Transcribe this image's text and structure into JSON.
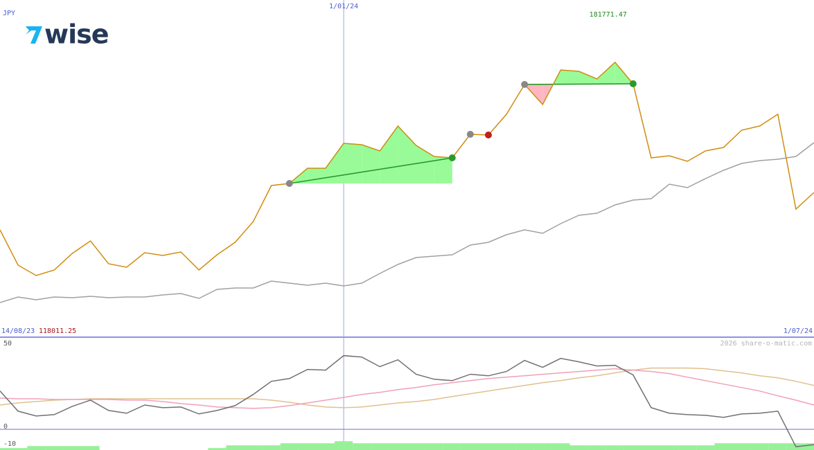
{
  "chart_data": [
    {
      "type": "line",
      "title": "JPY",
      "logo": "wise",
      "categories": [
        "14/08/23",
        null,
        null,
        null,
        null,
        null,
        null,
        null,
        null,
        null,
        null,
        null,
        null,
        null,
        null,
        null,
        null,
        null,
        null,
        "1/01/24",
        null,
        null,
        null,
        null,
        null,
        null,
        null,
        null,
        null,
        null,
        null,
        null,
        null,
        null,
        null,
        null,
        null,
        null,
        null,
        null,
        null,
        null,
        null,
        null,
        null,
        "1/07/24"
      ],
      "series": [
        {
          "color": "#d08c10",
          "values": [
            132200,
            124550,
            122300,
            123500,
            127100,
            129800,
            124850,
            124100,
            127250,
            126650,
            127400,
            123500,
            126800,
            129500,
            134000,
            141800,
            142250,
            145550,
            145550,
            150950,
            150650,
            149300,
            154700,
            150500,
            148100,
            147800,
            152900,
            152750,
            157250,
            163700,
            159350,
            166850,
            166550,
            164900,
            168500,
            163850,
            147800,
            148250,
            147050,
            149300,
            150050,
            153800,
            154700,
            157250,
            136700,
            140300
          ]
        },
        {
          "color": "#a0a0a0",
          "values": [
            116450,
            117650,
            117050,
            117650,
            117500,
            117800,
            117500,
            117650,
            117650,
            118100,
            118400,
            117350,
            119300,
            119600,
            119600,
            121100,
            120650,
            120200,
            120650,
            120050,
            120650,
            122750,
            124700,
            126200,
            126500,
            126800,
            128900,
            129500,
            131150,
            132200,
            131450,
            133550,
            135350,
            135800,
            137600,
            138650,
            138950,
            142100,
            141350,
            143300,
            145100,
            146600,
            147200,
            147500,
            148100,
            151100
          ]
        }
      ],
      "ylim": [
        109700,
        182000
      ],
      "high": 181771.47,
      "low": 118011.25,
      "trades": [
        {
          "entry": 16,
          "exit": 25
        },
        {
          "entry": 29,
          "exit": 35
        }
      ],
      "trade_colors": {
        "up": "#98fb98",
        "down": "#ffb6c1",
        "line": "#2a9a2a"
      },
      "markers": [
        {
          "index": 16,
          "color": "#888888"
        },
        {
          "index": 25,
          "color": "#2a9a2a"
        },
        {
          "index": 26,
          "color": "#888888"
        },
        {
          "index": 27,
          "color": "#c02020"
        },
        {
          "index": 29,
          "color": "#888888"
        },
        {
          "index": 35,
          "color": "#2a9a2a"
        }
      ]
    },
    {
      "type": "line",
      "credit": "2026 share-o-matic.com",
      "ylim": [
        -12,
        53
      ],
      "yticks": [
        50,
        0,
        -10
      ],
      "baseline": 0,
      "bars": {
        "color": "#98f098",
        "values": [
          -10.9,
          -10.9,
          -9.7,
          -9.7,
          -9.7,
          -9.7,
          null,
          null,
          null,
          null,
          null,
          null,
          -10.9,
          -9.3,
          -9.3,
          -9.3,
          -8.1,
          -8.1,
          -8.1,
          -6.9,
          -8.1,
          -8.1,
          -8.1,
          -8.1,
          -8.1,
          -8.1,
          -8.1,
          -8.1,
          -8.1,
          -8.1,
          -8.1,
          -8.1,
          -9.3,
          -9.3,
          -9.3,
          -9.3,
          -9.3,
          -9.3,
          -9.3,
          -9.3,
          -8.1,
          -8.1,
          -8.1,
          -8.1,
          -8.1,
          -8.1
        ]
      },
      "series": [
        {
          "color": "#707070",
          "values": [
            22.2,
            10.5,
            7.7,
            8.5,
            13.3,
            16.9,
            10.9,
            9.3,
            14.1,
            12.5,
            12.9,
            8.9,
            10.9,
            13.7,
            20.2,
            27.8,
            29.4,
            34.7,
            34.3,
            42.7,
            41.9,
            36.3,
            40.3,
            31.9,
            29.0,
            28.2,
            31.9,
            31.0,
            33.5,
            39.9,
            35.9,
            41.1,
            39.1,
            36.7,
            37.1,
            31.5,
            12.5,
            9.3,
            8.5,
            8.1,
            6.9,
            8.9,
            9.3,
            10.5,
            -10.1,
            -8.9
          ]
        },
        {
          "color": "#f0a0b8",
          "values": [
            18.1,
            17.7,
            17.7,
            17.3,
            17.3,
            17.3,
            17.3,
            16.9,
            16.9,
            16.1,
            14.9,
            14.1,
            12.9,
            12.5,
            12.1,
            12.5,
            13.7,
            15.3,
            16.9,
            18.5,
            20.2,
            21.4,
            23.0,
            24.2,
            25.8,
            27.0,
            28.2,
            29.4,
            30.2,
            31.0,
            31.9,
            32.7,
            33.5,
            34.3,
            35.1,
            34.3,
            33.5,
            32.3,
            30.2,
            28.2,
            26.2,
            24.2,
            22.2,
            19.4,
            16.9,
            14.1
          ]
        },
        {
          "color": "#e0c090",
          "values": [
            14.1,
            15.3,
            16.1,
            16.9,
            17.3,
            17.7,
            17.7,
            17.7,
            17.7,
            17.7,
            17.7,
            17.7,
            17.7,
            17.7,
            17.7,
            16.9,
            15.7,
            14.1,
            12.9,
            12.5,
            12.9,
            14.1,
            15.3,
            16.1,
            17.3,
            19.0,
            20.6,
            22.2,
            23.8,
            25.4,
            27.0,
            28.2,
            29.8,
            31.0,
            32.7,
            34.3,
            35.5,
            35.5,
            35.5,
            35.1,
            33.9,
            32.7,
            31.0,
            29.8,
            27.8,
            25.4
          ]
        }
      ]
    }
  ]
}
